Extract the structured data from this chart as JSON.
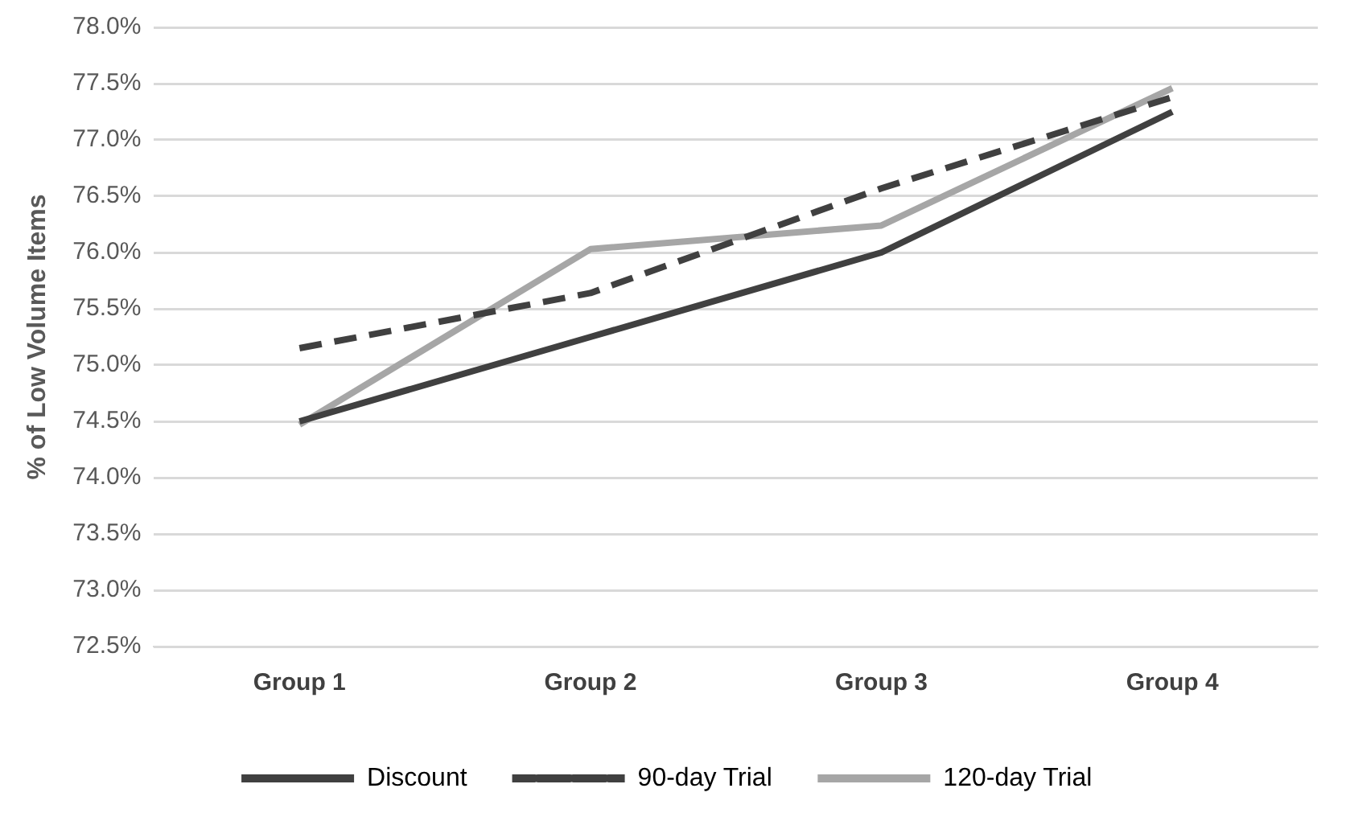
{
  "chart_data": {
    "type": "line",
    "ylabel": "% of Low Volume Items",
    "categories": [
      "Group 1",
      "Group 2",
      "Group 3",
      "Group 4"
    ],
    "series": [
      {
        "name": "Discount",
        "color": "#404040",
        "line_style": "solid",
        "values": [
          74.5,
          75.25,
          76.0,
          77.25
        ]
      },
      {
        "name": "90-day Trial",
        "color": "#404040",
        "line_style": "dashed",
        "values": [
          75.15,
          75.64,
          76.57,
          77.38
        ]
      },
      {
        "name": "120-day Trial",
        "color": "#a6a6a6",
        "line_style": "solid",
        "values": [
          74.47,
          76.03,
          76.24,
          77.46
        ]
      }
    ],
    "ylim": [
      72.5,
      78.0
    ],
    "yticks": [
      {
        "value": 72.5,
        "label": "72.5%"
      },
      {
        "value": 73.0,
        "label": "73.0%"
      },
      {
        "value": 73.5,
        "label": "73.5%"
      },
      {
        "value": 74.0,
        "label": "74.0%"
      },
      {
        "value": 74.5,
        "label": "74.5%"
      },
      {
        "value": 75.0,
        "label": "75.0%"
      },
      {
        "value": 75.5,
        "label": "75.5%"
      },
      {
        "value": 76.0,
        "label": "76.0%"
      },
      {
        "value": 76.5,
        "label": "76.5%"
      },
      {
        "value": 77.0,
        "label": "77.0%"
      },
      {
        "value": 77.5,
        "label": "77.5%"
      },
      {
        "value": 78.0,
        "label": "78.0%"
      }
    ],
    "grid": "y",
    "legend": "bottom",
    "marker": "none"
  }
}
